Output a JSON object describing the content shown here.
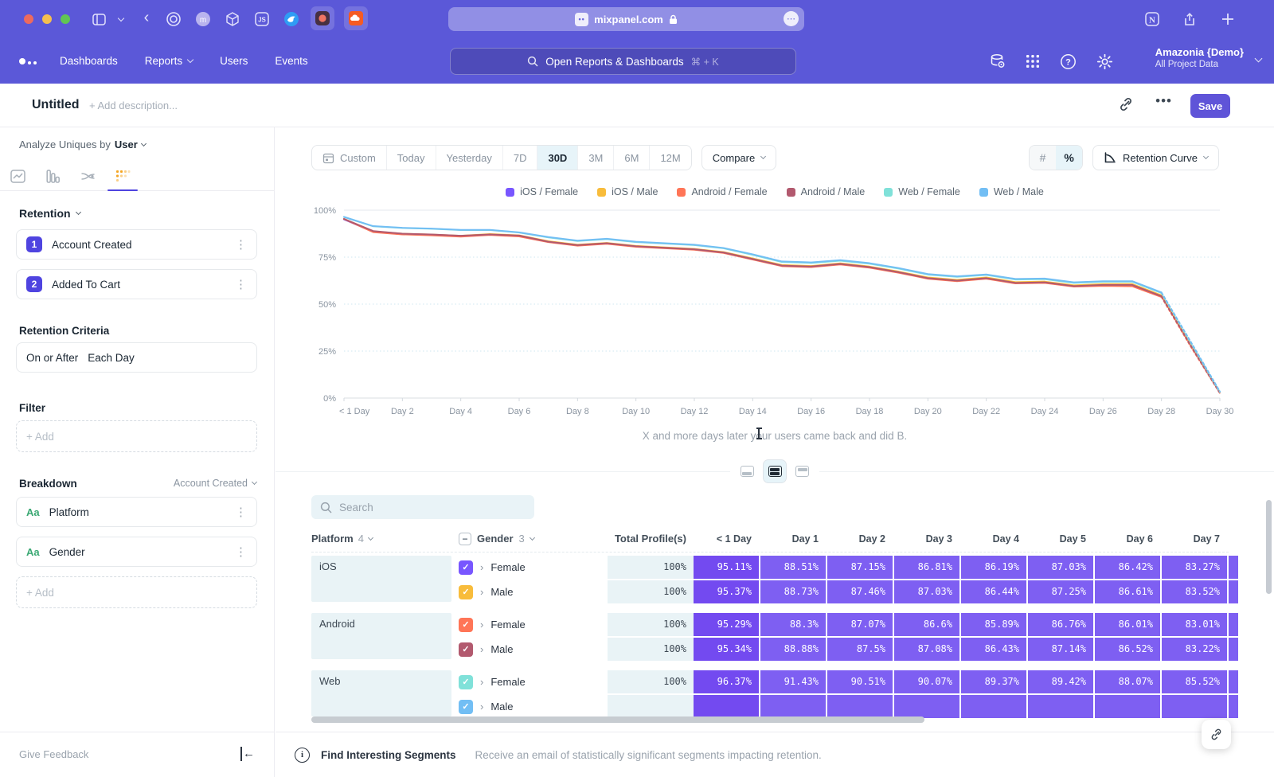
{
  "colors": {
    "chrome": "#5b58d8",
    "save": "#5f54d8",
    "underline": "#4f44e0",
    "cell": "#7e5ff2",
    "cell_first": "#734af0",
    "row_bg": "#e9f3f6",
    "green": "#3ba974",
    "active_bg": "#e7f4f9",
    "accent": "#7856ff"
  },
  "browser": {
    "url": "mixpanel.com"
  },
  "app_header": {
    "nav": [
      {
        "label": "Dashboards",
        "chevron": false
      },
      {
        "label": "Reports",
        "chevron": true
      },
      {
        "label": "Users",
        "chevron": false
      },
      {
        "label": "Events",
        "chevron": false
      }
    ],
    "search_placeholder": "Open Reports & Dashboards",
    "search_shortcut": "⌘ + K",
    "workspace_name": "Amazonia {Demo}",
    "workspace_scope": "All Project Data"
  },
  "title_bar": {
    "title": "Untitled",
    "description_placeholder": "+ Add description...",
    "save_label": "Save"
  },
  "sidebar": {
    "analyze_prefix": "Analyze Uniques by",
    "analyze_value": "User",
    "section_retention": "Retention",
    "steps": [
      {
        "index": "1",
        "label": "Account Created"
      },
      {
        "index": "2",
        "label": "Added To Cart"
      }
    ],
    "criteria_label": "Retention Criteria",
    "criteria_value_1": "On or After",
    "criteria_value_2": "Each Day",
    "filter_label": "Filter",
    "add_label": "+ Add",
    "breakdown_label": "Breakdown",
    "breakdown_scope": "Account Created",
    "breakdowns": [
      {
        "type": "Aa",
        "label": "Platform"
      },
      {
        "type": "Aa",
        "label": "Gender"
      }
    ],
    "feedback_label": "Give Feedback"
  },
  "controls": {
    "date_ranges": [
      "Custom",
      "Today",
      "Yesterday",
      "7D",
      "30D",
      "3M",
      "6M",
      "12M"
    ],
    "active_range": "30D",
    "compare_label": "Compare",
    "units": [
      "#",
      "%"
    ],
    "active_unit": "%",
    "view_selector": "Retention Curve"
  },
  "caption": "X and more days later your users came back and did B.",
  "chart_data": {
    "type": "line",
    "x_labels": [
      "< 1 Day",
      "Day 1",
      "Day 2",
      "Day 3",
      "Day 4",
      "Day 5",
      "Day 6",
      "Day 7",
      "Day 8",
      "Day 9",
      "Day 10",
      "Day 11",
      "Day 12",
      "Day 13",
      "Day 14",
      "Day 15",
      "Day 16",
      "Day 17",
      "Day 18",
      "Day 19",
      "Day 20",
      "Day 21",
      "Day 22",
      "Day 23",
      "Day 24",
      "Day 25",
      "Day 26",
      "Day 27",
      "Day 28",
      "Day 29",
      "Day 30"
    ],
    "tick_every": 2,
    "ylim": [
      0,
      100
    ],
    "yticks": [
      0,
      25,
      50,
      75,
      100
    ],
    "dashed_from_index": 28,
    "legend_position": "top",
    "series": [
      {
        "name": "iOS / Female",
        "color": "#7856FF",
        "values": [
          95.1,
          88.5,
          87.2,
          86.8,
          86.2,
          87.0,
          86.4,
          83.3,
          81.3,
          82.3,
          80.7,
          79.9,
          79.1,
          77.4,
          73.9,
          70.4,
          69.9,
          71.3,
          69.6,
          66.9,
          63.7,
          62.4,
          63.9,
          61.5,
          61.8,
          59.8,
          60.5,
          60.5,
          54.5,
          28.2,
          2.9
        ]
      },
      {
        "name": "iOS / Male",
        "color": "#F8BC3B",
        "values": [
          95.4,
          88.7,
          87.5,
          87.0,
          86.4,
          87.3,
          86.6,
          83.5,
          81.6,
          82.6,
          81.0,
          80.2,
          79.4,
          77.7,
          74.3,
          70.8,
          70.3,
          71.7,
          70.0,
          67.3,
          64.2,
          62.9,
          64.2,
          61.7,
          62.0,
          60.0,
          60.7,
          60.7,
          54.7,
          28.5,
          3.0
        ]
      },
      {
        "name": "Android / Female",
        "color": "#FF7557",
        "values": [
          95.3,
          88.3,
          87.1,
          86.6,
          85.9,
          86.8,
          86.0,
          83.0,
          81.1,
          82.1,
          80.5,
          79.7,
          78.9,
          77.2,
          73.7,
          70.2,
          69.7,
          71.1,
          69.4,
          66.7,
          63.5,
          62.2,
          63.5,
          61.0,
          61.3,
          59.3,
          59.7,
          59.5,
          53.8,
          27.5,
          2.6
        ]
      },
      {
        "name": "Android / Male",
        "color": "#B2596E",
        "values": [
          95.3,
          88.9,
          87.5,
          87.1,
          86.4,
          87.1,
          86.5,
          83.2,
          81.4,
          82.4,
          80.8,
          80.0,
          79.2,
          77.5,
          74.0,
          70.5,
          70.0,
          71.4,
          69.7,
          67.0,
          63.8,
          62.5,
          63.8,
          61.3,
          61.6,
          59.6,
          60.2,
          60.2,
          54.2,
          28.0,
          2.8
        ]
      },
      {
        "name": "Web / Female",
        "color": "#80E1D9",
        "values": [
          96.4,
          91.4,
          90.5,
          90.1,
          89.4,
          89.4,
          88.1,
          85.5,
          83.6,
          84.6,
          83.0,
          82.2,
          81.4,
          79.7,
          76.2,
          72.4,
          71.9,
          73.1,
          71.5,
          68.9,
          65.7,
          64.5,
          65.5,
          63.1,
          63.3,
          61.3,
          61.9,
          61.9,
          55.9,
          29.5,
          3.2
        ]
      },
      {
        "name": "Web / Male",
        "color": "#72BEF4",
        "values": [
          96.4,
          91.5,
          90.6,
          90.2,
          89.5,
          89.5,
          88.2,
          85.7,
          83.8,
          84.8,
          83.2,
          82.4,
          81.6,
          79.9,
          76.5,
          72.7,
          72.2,
          73.4,
          71.8,
          69.2,
          66.0,
          64.8,
          65.8,
          63.4,
          63.6,
          61.6,
          62.2,
          62.2,
          56.2,
          30.0,
          3.5
        ]
      }
    ]
  },
  "table": {
    "search_placeholder": "Search",
    "col_platform": "Platform",
    "platform_count": "4",
    "col_gender": "Gender",
    "gender_count": "3",
    "col_total": "Total Profile(s)",
    "day_columns": [
      "< 1 Day",
      "Day 1",
      "Day 2",
      "Day 3",
      "Day 4",
      "Day 5",
      "Day 6",
      "Day 7"
    ],
    "groups": [
      {
        "platform": "iOS",
        "rows": [
          {
            "gender": "Female",
            "color": "#7856FF",
            "total": "100%",
            "values": [
              "95.11%",
              "88.51%",
              "87.15%",
              "86.81%",
              "86.19%",
              "87.03%",
              "86.42%",
              "83.27%"
            ]
          },
          {
            "gender": "Male",
            "color": "#F8BC3B",
            "total": "100%",
            "values": [
              "95.37%",
              "88.73%",
              "87.46%",
              "87.03%",
              "86.44%",
              "87.25%",
              "86.61%",
              "83.52%"
            ]
          }
        ]
      },
      {
        "platform": "Android",
        "rows": [
          {
            "gender": "Female",
            "color": "#FF7557",
            "total": "100%",
            "values": [
              "95.29%",
              "88.3%",
              "87.07%",
              "86.6%",
              "85.89%",
              "86.76%",
              "86.01%",
              "83.01%"
            ]
          },
          {
            "gender": "Male",
            "color": "#B2596E",
            "total": "100%",
            "values": [
              "95.34%",
              "88.88%",
              "87.5%",
              "87.08%",
              "86.43%",
              "87.14%",
              "86.52%",
              "83.22%"
            ]
          }
        ]
      },
      {
        "platform": "Web",
        "rows": [
          {
            "gender": "Female",
            "color": "#80E1D9",
            "total": "100%",
            "values": [
              "96.37%",
              "91.43%",
              "90.51%",
              "90.07%",
              "89.37%",
              "89.42%",
              "88.07%",
              "85.52%"
            ]
          },
          {
            "gender": "Male",
            "color": "#72BEF4",
            "total": "",
            "values": [
              "",
              "",
              "",
              "",
              "",
              "",
              "",
              ""
            ]
          }
        ]
      }
    ]
  },
  "footer": {
    "title": "Find Interesting Segments",
    "description": "Receive an email of statistically significant segments impacting retention."
  }
}
